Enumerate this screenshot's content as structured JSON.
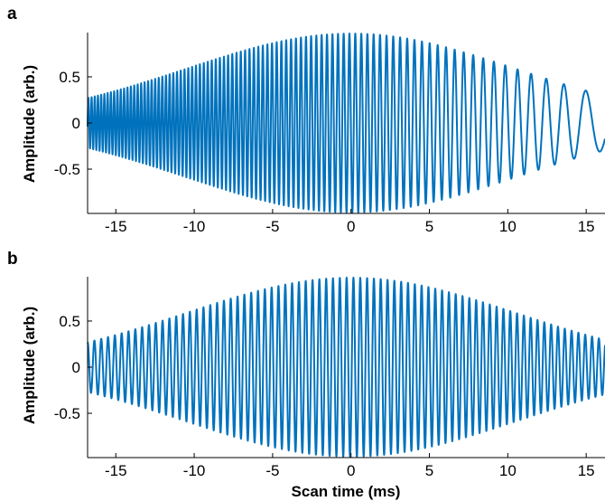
{
  "chart_data": [
    {
      "panel": "a",
      "type": "line",
      "title": "",
      "xlabel": "",
      "ylabel": "Amplitude (arb.)",
      "xlim": [
        -16.8,
        16.2
      ],
      "ylim": [
        -0.98,
        0.98
      ],
      "xticks": [
        -15,
        -10,
        -5,
        0,
        5,
        10,
        15
      ],
      "xtick_labels": [
        "-15",
        "-10",
        "-5",
        "0",
        "5",
        "10",
        "15"
      ],
      "yticks": [
        0.5,
        0,
        -0.5
      ],
      "ytick_labels": [
        "0.5",
        "0",
        "-0.5"
      ],
      "grid": false,
      "color": "#0072BD",
      "signal": {
        "description": "chirped oscillation with Gaussian envelope",
        "envelope_peak": 0.97,
        "envelope_center_ms": 0,
        "envelope_value_at_edges": 0.27,
        "frequency_at_start_per_ms": 5.0,
        "frequency_at_end_per_ms": 0.45,
        "value_at_end": -0.17
      }
    },
    {
      "panel": "b",
      "type": "line",
      "title": "",
      "xlabel": "Scan time (ms)",
      "ylabel": "Amplitude (arb.)",
      "xlim": [
        -16.8,
        16.2
      ],
      "ylim": [
        -0.98,
        0.98
      ],
      "xticks": [
        -15,
        -10,
        -5,
        0,
        5,
        10,
        15
      ],
      "xtick_labels": [
        "-15",
        "-10",
        "-5",
        "0",
        "5",
        "10",
        "15"
      ],
      "yticks": [
        0.5,
        0,
        -0.5
      ],
      "ytick_labels": [
        "0.5",
        "0",
        "-0.5"
      ],
      "grid": false,
      "color": "#0072BD",
      "signal": {
        "description": "constant-frequency oscillation with Gaussian envelope",
        "envelope_peak": 0.97,
        "envelope_center_ms": 0,
        "envelope_value_at_edges": 0.27,
        "frequency_per_ms": 2.3
      }
    }
  ]
}
